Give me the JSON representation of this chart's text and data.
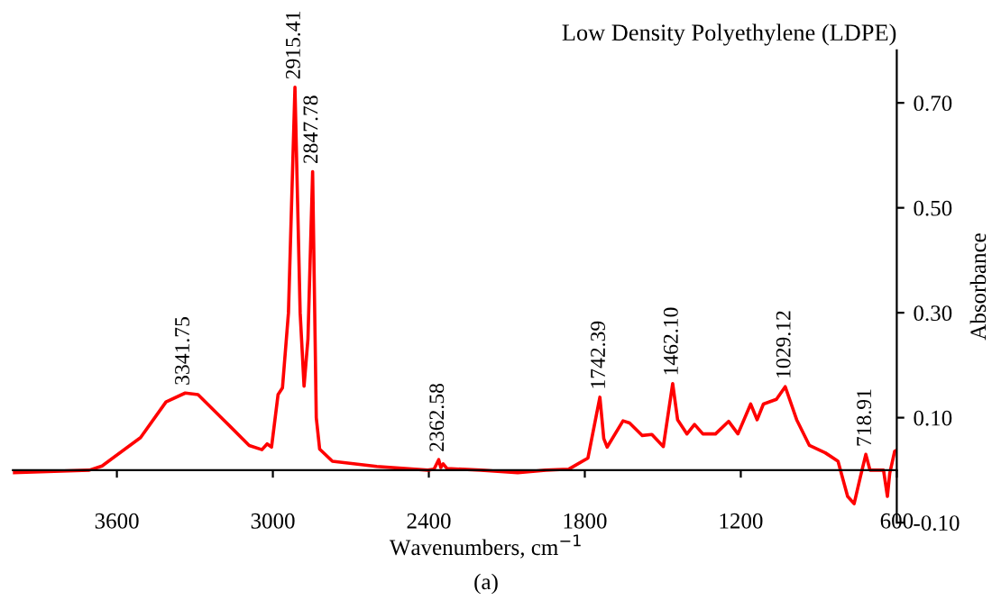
{
  "chart_data": {
    "type": "line",
    "title": "Low Density Polyethylene (LDPE)",
    "xlabel": "Wavenumbers, cm$^{−1}$",
    "ylabel": "Absorbance",
    "xlim": [
      4000,
      600
    ],
    "xticks": [
      3600,
      3000,
      2400,
      1800,
      1200,
      600
    ],
    "ylim": [
      -0.1,
      0.8
    ],
    "yticks": [
      {
        "value": -0.1,
        "label": "-0.10"
      },
      {
        "value": 0.1,
        "label": "0.10"
      },
      {
        "value": 0.3,
        "label": "0.30"
      },
      {
        "value": 0.5,
        "label": "0.50"
      },
      {
        "value": 0.7,
        "label": "0.70"
      }
    ],
    "grid": false,
    "marker": "none",
    "line_style": "solid",
    "series": [
      {
        "color": "#ff0000",
        "x": [
          4000,
          3706,
          3657,
          3509,
          3411,
          3337,
          3288,
          3190,
          3091,
          3042,
          3022,
          3005,
          2980,
          2963,
          2940,
          2915,
          2895,
          2880,
          2865,
          2847,
          2833,
          2820,
          2771,
          2600,
          2404,
          2380,
          2362,
          2354,
          2345,
          2330,
          2200,
          2058,
          1950,
          1861,
          1788,
          1742,
          1727,
          1714,
          1653,
          1628,
          1579,
          1542,
          1498,
          1462,
          1443,
          1407,
          1378,
          1346,
          1297,
          1247,
          1211,
          1162,
          1137,
          1113,
          1063,
          1029,
          985,
          936,
          875,
          826,
          789,
          764,
          740,
          719,
          703,
          651,
          636,
          627,
          608,
          600
        ],
        "values": [
          -0.005,
          0.0,
          0.008,
          0.062,
          0.13,
          0.147,
          0.144,
          0.096,
          0.047,
          0.039,
          0.05,
          0.044,
          0.144,
          0.157,
          0.3,
          0.73,
          0.3,
          0.16,
          0.25,
          0.569,
          0.1,
          0.04,
          0.017,
          0.007,
          0.0,
          0.002,
          0.02,
          0.005,
          0.012,
          0.003,
          0.0,
          -0.005,
          0.0,
          0.002,
          0.023,
          0.139,
          0.06,
          0.044,
          0.094,
          0.09,
          0.066,
          0.068,
          0.045,
          0.165,
          0.096,
          0.069,
          0.087,
          0.069,
          0.069,
          0.093,
          0.069,
          0.126,
          0.096,
          0.126,
          0.135,
          0.159,
          0.096,
          0.047,
          0.033,
          0.017,
          -0.05,
          -0.064,
          -0.013,
          0.03,
          0.0,
          0.0,
          -0.05,
          -0.006,
          0.036,
          0.038
        ]
      }
    ],
    "annotations": [
      {
        "text": "3341.75",
        "x": 3341.75,
        "y": 0.147
      },
      {
        "text": "2915.41",
        "x": 2915.41,
        "y": 0.73
      },
      {
        "text": "2847.78",
        "x": 2847.78,
        "y": 0.569
      },
      {
        "text": "2362.58",
        "x": 2362.58,
        "y": 0.02
      },
      {
        "text": "1742.39",
        "x": 1742.39,
        "y": 0.139
      },
      {
        "text": "1462.10",
        "x": 1462.1,
        "y": 0.165
      },
      {
        "text": "1029.12",
        "x": 1029.12,
        "y": 0.159
      },
      {
        "text": "718.91",
        "x": 718.91,
        "y": 0.03
      },
      "(a)"
    ]
  }
}
